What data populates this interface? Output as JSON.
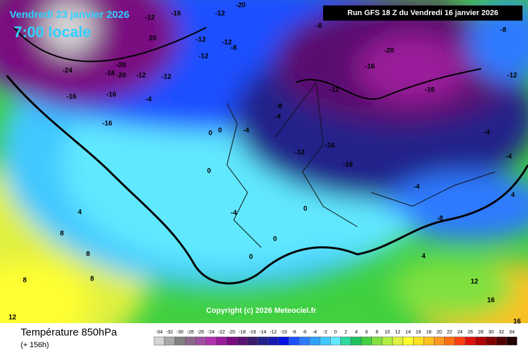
{
  "header": {
    "date": "Vendredi 23 janvier 2026",
    "time": "7:00 locale",
    "run": "Run GFS 18 Z du Vendredi 16 janvier 2026"
  },
  "footer": {
    "variable": "Température 850hPa",
    "lead": "(+ 156h)",
    "copyright": "Copyright (c) 2026 Meteociel.fr"
  },
  "scale": {
    "values": [
      -34,
      -32,
      -30,
      -28,
      -26,
      -24,
      -22,
      -20,
      -18,
      -16,
      -14,
      -12,
      -10,
      -8,
      -6,
      -4,
      -2,
      0,
      2,
      4,
      6,
      8,
      10,
      12,
      14,
      16,
      18,
      20,
      22,
      24,
      26,
      28,
      30,
      32,
      34
    ],
    "colors": [
      "#d4d4d4",
      "#a8a8a8",
      "#808080",
      "#8a6a8a",
      "#a050a0",
      "#b030b0",
      "#9a1a9a",
      "#7a0a80",
      "#5a1070",
      "#3a1a6a",
      "#20208a",
      "#1818b0",
      "#0010e0",
      "#1e50ff",
      "#2e7aff",
      "#30a0ff",
      "#40c8ff",
      "#60e8ff",
      "#30d8a0",
      "#20c060",
      "#40d040",
      "#80e040",
      "#b0f040",
      "#e0f040",
      "#ffff30",
      "#ffe020",
      "#ffc020",
      "#ff9820",
      "#ff7010",
      "#ff4010",
      "#e01010",
      "#b00000",
      "#800000",
      "#500000",
      "#200000"
    ]
  },
  "map_labels": [
    -12,
    -16,
    -12,
    -16,
    20,
    -20,
    -24,
    -20,
    -20,
    -12,
    -12,
    -16,
    -16,
    -4,
    -12,
    -8,
    -12,
    -16,
    -12,
    -8,
    -20,
    -16,
    -16,
    -12,
    -16,
    -16,
    -12,
    -8,
    -4,
    -4,
    0,
    0,
    0,
    -4,
    4,
    8,
    8,
    8,
    8,
    12,
    12,
    16,
    16,
    0,
    -4,
    -4,
    -8,
    -4,
    4,
    4,
    0,
    0,
    -8,
    -12
  ]
}
